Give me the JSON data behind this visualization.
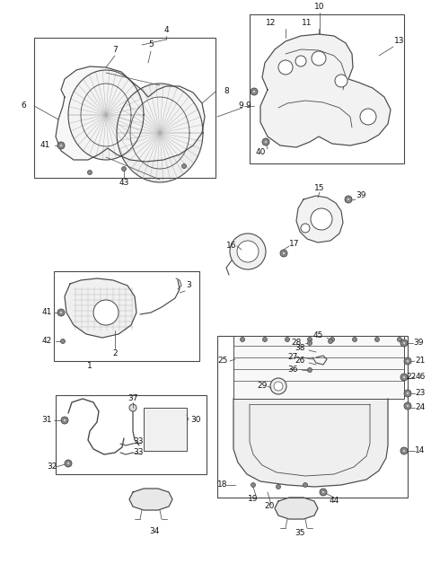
{
  "bg_color": "#ffffff",
  "line_color": "#4a4a4a",
  "text_color": "#111111",
  "font_size": 6.5,
  "lw_main": 0.9,
  "lw_thin": 0.5,
  "lw_leader": 0.55
}
